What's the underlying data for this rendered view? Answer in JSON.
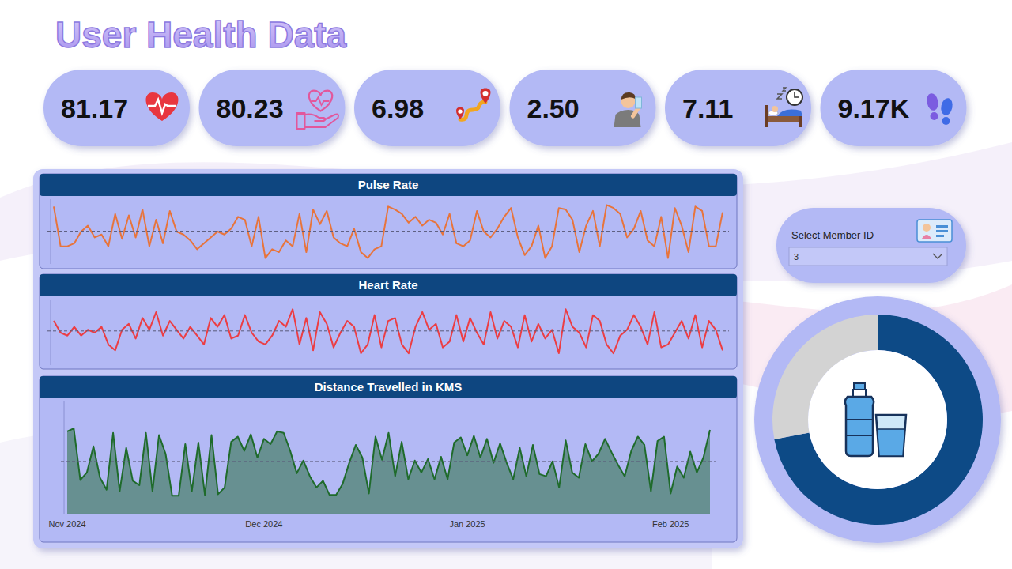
{
  "title": "User Health Data",
  "kpis": [
    "81.17",
    "80.23",
    "6.98",
    "2.50",
    "7.11",
    "9.17K"
  ],
  "slicer": {
    "label": "Select Member ID",
    "value": "3"
  },
  "chart_data": [
    {
      "type": "line",
      "title": "Pulse Rate",
      "values": [
        97,
        70,
        70,
        72,
        80,
        84,
        76,
        78,
        70,
        92,
        75,
        91,
        76,
        95,
        70,
        88,
        72,
        94,
        80,
        78,
        74,
        68,
        72,
        76,
        80,
        78,
        82,
        90,
        88,
        70,
        90,
        62,
        68,
        66,
        74,
        70,
        92,
        66,
        95,
        85,
        94,
        76,
        72,
        70,
        82,
        66,
        62,
        68,
        70,
        97,
        95,
        92,
        86,
        90,
        84,
        88,
        86,
        78,
        92,
        72,
        70,
        74,
        94,
        80,
        76,
        82,
        90,
        96,
        76,
        64,
        70,
        84,
        62,
        70,
        96,
        95,
        88,
        66,
        84,
        94,
        70,
        98,
        96,
        92,
        76,
        82,
        94,
        74,
        70,
        90,
        62,
        96,
        84,
        66,
        97,
        94,
        70,
        70,
        93
      ],
      "color": "#e8743b",
      "ylim": [
        58,
        102
      ],
      "average": 80.23,
      "tick_labels": false,
      "grid": false
    },
    {
      "type": "line",
      "title": "Heart Rate",
      "values": [
        88,
        80,
        78,
        84,
        78,
        82,
        80,
        84,
        72,
        68,
        82,
        86,
        76,
        90,
        82,
        94,
        78,
        88,
        82,
        76,
        84,
        78,
        72,
        90,
        84,
        92,
        76,
        78,
        92,
        80,
        74,
        72,
        78,
        88,
        84,
        96,
        72,
        90,
        68,
        94,
        86,
        70,
        80,
        88,
        84,
        66,
        72,
        92,
        70,
        88,
        90,
        72,
        66,
        84,
        94,
        82,
        86,
        70,
        74,
        92,
        74,
        90,
        80,
        72,
        94,
        76,
        88,
        84,
        70,
        92,
        74,
        86,
        76,
        82,
        66,
        96,
        84,
        80,
        70,
        92,
        88,
        72,
        66,
        78,
        82,
        92,
        84,
        72,
        94,
        70,
        72,
        80,
        88,
        76,
        92,
        70,
        88,
        82,
        68
      ],
      "color": "#ec3d43",
      "ylim": [
        58,
        102
      ],
      "average": 81.17,
      "tick_labels": false,
      "grid": false
    },
    {
      "type": "area",
      "title": "Distance Travelled in KMS",
      "categories": [
        "Nov 2024",
        null,
        null,
        null,
        null,
        null,
        null,
        null,
        null,
        null,
        null,
        null,
        null,
        null,
        null,
        null,
        null,
        null,
        null,
        null,
        null,
        null,
        null,
        null,
        null,
        null,
        null,
        null,
        null,
        null,
        "Dec 2024",
        null,
        null,
        null,
        null,
        null,
        null,
        null,
        null,
        null,
        null,
        null,
        null,
        null,
        null,
        null,
        null,
        null,
        null,
        null,
        null,
        null,
        null,
        null,
        null,
        null,
        null,
        null,
        null,
        null,
        null,
        "Jan 2025",
        null,
        null,
        null,
        null,
        null,
        null,
        null,
        null,
        null,
        null,
        null,
        null,
        null,
        null,
        null,
        null,
        null,
        null,
        null,
        null,
        null,
        null,
        null,
        null,
        null,
        null,
        null,
        null,
        null,
        null,
        "Feb 2025",
        null,
        null,
        null,
        null,
        null,
        null
      ],
      "values": [
        11,
        11.4,
        4.5,
        5.5,
        9,
        4.8,
        3.2,
        10.8,
        3,
        8.8,
        4.4,
        3.8,
        10.8,
        3,
        10.5,
        8,
        2.4,
        2.4,
        9.3,
        3,
        9.5,
        2.5,
        10.5,
        2.6,
        3.5,
        9.6,
        10.3,
        8.4,
        10.6,
        7.5,
        10,
        9.3,
        11,
        10.8,
        8.4,
        5.4,
        7.1,
        5,
        3.5,
        4.4,
        2.5,
        2.5,
        4,
        6.8,
        9.2,
        7.5,
        2.7,
        10.3,
        7.2,
        10.8,
        5,
        9.6,
        4.6,
        7.1,
        5.5,
        7.3,
        4.6,
        7.6,
        4.6,
        9.5,
        10.2,
        7.8,
        10.4,
        7.5,
        10,
        6.8,
        9.4,
        6.8,
        4.6,
        8.8,
        5,
        9.2,
        5.3,
        5,
        7,
        3.5,
        9.8,
        5.5,
        4.8,
        9.3,
        7,
        8,
        10,
        8.2,
        6.5,
        5,
        8.4,
        10.3,
        9.2,
        3,
        9.7,
        10.3,
        2.7,
        6.3,
        4.8,
        8.3,
        5.5,
        7.5,
        11.2
      ],
      "color": "#1f6b2b",
      "ylim": [
        0,
        15
      ],
      "average": 6.98,
      "tick_labels": "x",
      "grid": false
    },
    {
      "type": "donut",
      "values": [
        72,
        28
      ],
      "colors": [
        "#0d4a86",
        "#d3d3d3"
      ]
    }
  ]
}
